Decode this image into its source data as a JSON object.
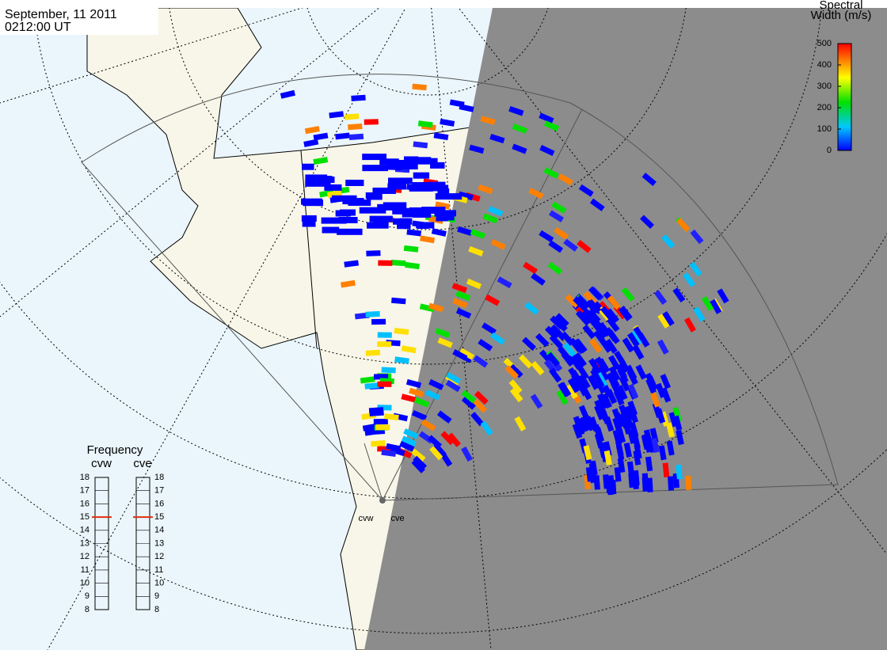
{
  "header": {
    "date": "September, 11 2011",
    "time": "0212:00 UT"
  },
  "colorbar": {
    "title_lines": [
      "Spectral",
      "Width (m/s)"
    ],
    "lim": [
      0,
      500
    ],
    "ticks": [
      0,
      100,
      200,
      300,
      400,
      500
    ]
  },
  "frequency": {
    "title": "Frequency",
    "lim": [
      8,
      18
    ],
    "ticks": [
      8,
      9,
      10,
      11,
      12,
      13,
      14,
      15,
      16,
      17,
      18
    ],
    "radars": [
      {
        "name": "cvw",
        "value": 15
      },
      {
        "name": "cve",
        "value": 15
      }
    ]
  },
  "sites": [
    "cvw",
    "cve"
  ]
}
